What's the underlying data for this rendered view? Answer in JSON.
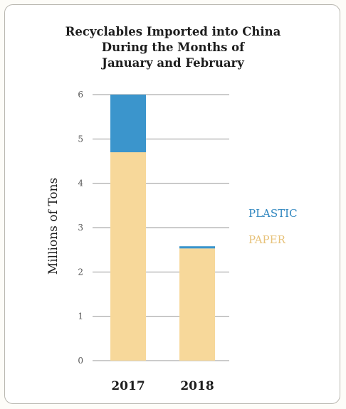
{
  "chart_data": {
    "type": "bar",
    "stacked": true,
    "title_lines": [
      "Recyclables Imported into China",
      "During the Months of",
      "January and February"
    ],
    "ylabel": "Millions of Tons",
    "xlabel": "",
    "categories": [
      "2017",
      "2018"
    ],
    "series": [
      {
        "name": "PAPER",
        "values": [
          4.7,
          2.53
        ],
        "color": "#f7d89a"
      },
      {
        "name": "PLASTIC",
        "values": [
          1.3,
          0.05
        ],
        "color": "#3b95cc"
      }
    ],
    "ylim": [
      0,
      6
    ],
    "yticks": [
      "0",
      "1",
      "2",
      "3",
      "4",
      "5",
      "6"
    ],
    "grid": true,
    "legend": [
      {
        "label": "PLASTIC",
        "color": "#2f86bf"
      },
      {
        "label": "PAPER",
        "color": "#e7c27a"
      }
    ],
    "legend_position": "right"
  }
}
